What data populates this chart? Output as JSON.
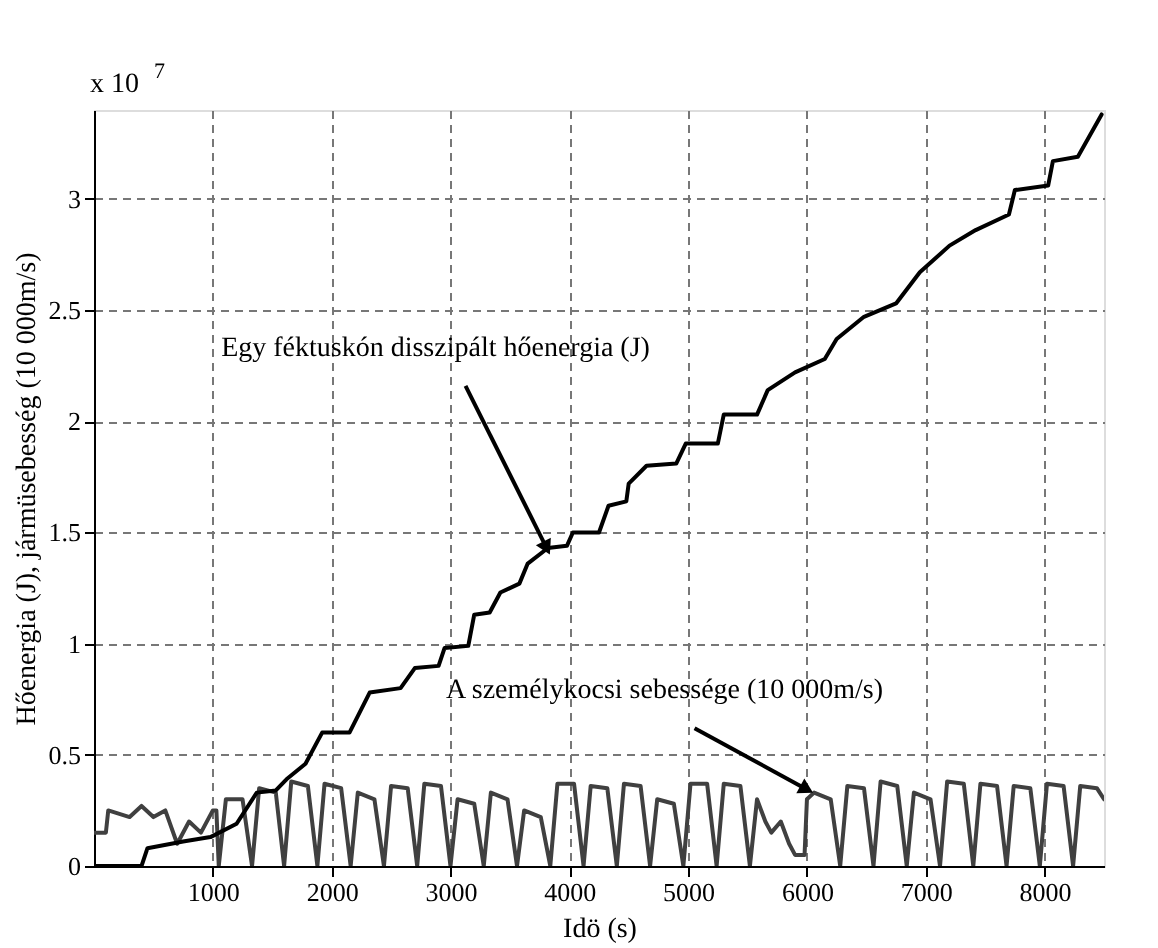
{
  "chart_data": {
    "type": "line",
    "xlabel": "Idö (s)",
    "ylabel": "Hőenergia (J), jármüsebesség (10 000m/s)",
    "xlim": [
      0,
      8500
    ],
    "ylim": [
      0,
      3.4
    ],
    "xticks": [
      1000,
      2000,
      3000,
      4000,
      5000,
      6000,
      7000,
      8000
    ],
    "yticks": [
      0,
      0.5,
      1,
      1.5,
      2,
      2.5,
      3
    ],
    "grid": true,
    "legend": false,
    "marker": "none",
    "line_style": "solid",
    "annotations": [
      "x 10$^{7}$",
      {
        "text": "Egy féktuskón disszipált hőenergia (J)",
        "x": 3800,
        "y": 1.44
      },
      {
        "text": "A személykocsi sebessége (10 000m/s)",
        "x": 5980,
        "y": 0.35
      }
    ],
    "series": [
      {
        "color": "#404040",
        "x": [
          0,
          100,
          120,
          300,
          400,
          500,
          600,
          700,
          800,
          900,
          1000,
          1030,
          1050,
          1110,
          1250,
          1330,
          1390,
          1530,
          1600,
          1660,
          1800,
          1880,
          1940,
          2080,
          2160,
          2220,
          2360,
          2440,
          2500,
          2640,
          2720,
          2780,
          2920,
          3000,
          3060,
          3200,
          3280,
          3340,
          3480,
          3560,
          3620,
          3760,
          3840,
          3900,
          4040,
          4120,
          4180,
          4320,
          4400,
          4460,
          4600,
          4680,
          4740,
          4880,
          4960,
          5020,
          5160,
          5240,
          5300,
          5440,
          5520,
          5580,
          5650,
          5700,
          5780,
          5850,
          5900,
          5980,
          6000,
          6060,
          6200,
          6280,
          6340,
          6480,
          6560,
          6620,
          6760,
          6840,
          6900,
          7040,
          7120,
          7180,
          7320,
          7400,
          7460,
          7600,
          7680,
          7740,
          7880,
          7960,
          8020,
          8160,
          8240,
          8300,
          8440,
          8500
        ],
        "values": [
          0.15,
          0.15,
          0.25,
          0.22,
          0.27,
          0.22,
          0.25,
          0.1,
          0.2,
          0.15,
          0.25,
          0.25,
          0.0,
          0.3,
          0.3,
          0.0,
          0.35,
          0.33,
          0.0,
          0.38,
          0.36,
          0.0,
          0.37,
          0.35,
          0.0,
          0.33,
          0.3,
          0.0,
          0.36,
          0.35,
          0.0,
          0.37,
          0.36,
          0.0,
          0.3,
          0.28,
          0.0,
          0.33,
          0.3,
          0.0,
          0.25,
          0.22,
          0.0,
          0.37,
          0.37,
          0.0,
          0.36,
          0.35,
          0.0,
          0.37,
          0.36,
          0.0,
          0.3,
          0.28,
          0.0,
          0.37,
          0.37,
          0.0,
          0.37,
          0.36,
          0.0,
          0.3,
          0.2,
          0.15,
          0.2,
          0.1,
          0.05,
          0.05,
          0.3,
          0.33,
          0.3,
          0.0,
          0.36,
          0.35,
          0.0,
          0.38,
          0.36,
          0.0,
          0.33,
          0.3,
          0.0,
          0.38,
          0.37,
          0.0,
          0.37,
          0.36,
          0.0,
          0.36,
          0.35,
          0.0,
          0.37,
          0.36,
          0.0,
          0.36,
          0.35,
          0.3
        ]
      },
      {
        "color": "#000000",
        "x": [
          0,
          400,
          450,
          750,
          980,
          1200,
          1370,
          1530,
          1620,
          1780,
          1920,
          2150,
          2320,
          2580,
          2700,
          2900,
          2950,
          3150,
          3200,
          3330,
          3420,
          3580,
          3650,
          3820,
          3980,
          4030,
          4250,
          4330,
          4480,
          4500,
          4650,
          4900,
          4980,
          5250,
          5300,
          5580,
          5670,
          5900,
          6150,
          6250,
          6480,
          6750,
          6950,
          7200,
          7420,
          7700,
          7750,
          8030,
          8070,
          8280,
          8480
        ],
        "values": [
          0,
          0,
          0.08,
          0.11,
          0.13,
          0.19,
          0.33,
          0.34,
          0.39,
          0.46,
          0.6,
          0.6,
          0.78,
          0.8,
          0.89,
          0.9,
          0.98,
          0.99,
          1.13,
          1.14,
          1.23,
          1.27,
          1.36,
          1.43,
          1.44,
          1.5,
          1.5,
          1.62,
          1.64,
          1.72,
          1.8,
          1.81,
          1.9,
          1.9,
          2.03,
          2.03,
          2.14,
          2.22,
          2.28,
          2.37,
          2.47,
          2.53,
          2.67,
          2.79,
          2.86,
          2.93,
          3.04,
          3.06,
          3.17,
          3.19,
          3.38
        ]
      }
    ]
  }
}
